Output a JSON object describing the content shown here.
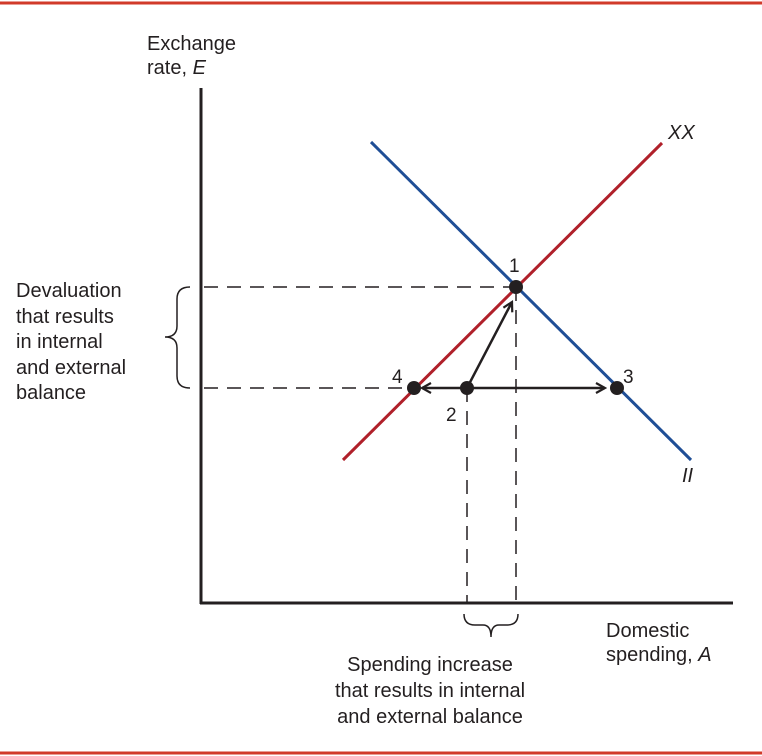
{
  "colors": {
    "rule": "#d13a2a",
    "axis": "#231f20",
    "xx_curve": "#b0202a",
    "ii_curve": "#1f4e96",
    "dash": "#231f20"
  },
  "y_axis_label": {
    "line1": "Exchange",
    "line2_prefix": "rate, ",
    "line2_var": "E"
  },
  "x_axis_label": {
    "line1": "Domestic",
    "line2_prefix": "spending, ",
    "line2_var": "A"
  },
  "curves": {
    "xx": "XX",
    "ii": "II"
  },
  "points": {
    "p1": "1",
    "p2": "2",
    "p3": "3",
    "p4": "4"
  },
  "left_annotation": [
    "Devaluation",
    "that results",
    "in internal",
    "and external",
    "balance"
  ],
  "bottom_annotation": [
    "Spending increase",
    "that results in internal",
    "and external balance"
  ]
}
